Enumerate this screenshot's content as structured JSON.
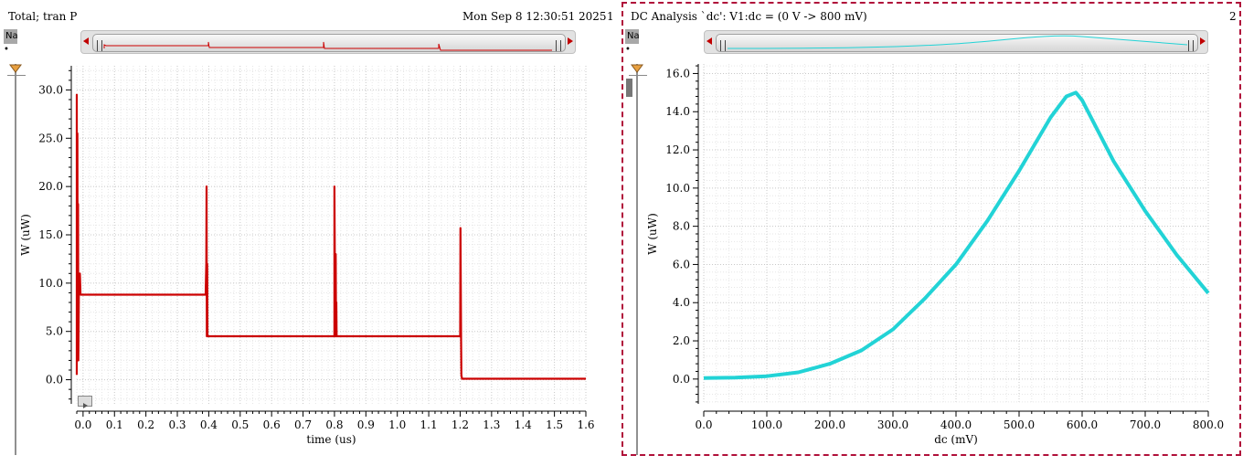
{
  "left_pane": {
    "title": "Total; tran P",
    "date": "Mon Sep 8 12:30:51 2025",
    "index": "1",
    "side_label": "Na"
  },
  "right_pane": {
    "title": "DC Analysis `dc': V1:dc = (0 V -> 800 mV)",
    "index": "2",
    "side_label": "Na"
  },
  "colors": {
    "trace_left": "#cc0000",
    "trace_right": "#22d3d6",
    "selection": "#b0103a"
  },
  "chart_data": [
    {
      "type": "line",
      "title": "Total; tran P",
      "xlabel": "time (us)",
      "ylabel": "W (uW)",
      "xlim": [
        -0.02,
        1.6
      ],
      "ylim": [
        -2.5,
        32.5
      ],
      "xticks": [
        "0.0",
        "0.1",
        "0.2",
        "0.3",
        "0.4",
        "0.5",
        "0.6",
        "0.7",
        "0.8",
        "0.9",
        "1.0",
        "1.1",
        "1.2",
        "1.3",
        "1.4",
        "1.5",
        "1.6"
      ],
      "yticks": [
        "0.0",
        "5.0",
        "10.0",
        "15.0",
        "20.0",
        "25.0",
        "30.0"
      ],
      "grid": true,
      "series": [
        {
          "x": [
            -0.02,
            -0.02,
            -0.019,
            -0.018,
            -0.017,
            -0.016,
            -0.015,
            -0.013,
            -0.012,
            -0.01,
            -0.008,
            -0.005,
            0.39,
            0.392,
            0.393,
            0.394,
            0.395,
            0.396,
            0.8,
            0.8,
            0.801,
            0.803,
            0.804,
            0.805,
            0.806,
            0.807,
            1.2,
            1.201,
            1.203,
            1.204,
            1.206,
            1.6
          ],
          "y": [
            0.5,
            29.5,
            2,
            25.5,
            2,
            18.2,
            2,
            10.5,
            9,
            11,
            8.8,
            8.8,
            8.8,
            12,
            20,
            4.5,
            12,
            4.5,
            4.5,
            20,
            13,
            4.5,
            13,
            4.5,
            8,
            4.5,
            4.5,
            15.7,
            4,
            0.5,
            0.1,
            0.1
          ]
        }
      ]
    },
    {
      "type": "line",
      "title": "DC Analysis `dc': V1:dc = (0 V -> 800 mV)",
      "xlabel": "dc (mV)",
      "ylabel": "W (uW)",
      "xlim": [
        0,
        800
      ],
      "ylim": [
        -1.3,
        16.5
      ],
      "xticks": [
        "0.0",
        "100.0",
        "200.0",
        "300.0",
        "400.0",
        "500.0",
        "600.0",
        "700.0",
        "800.0"
      ],
      "yticks": [
        "0.0",
        "2.0",
        "4.0",
        "6.0",
        "8.0",
        "10.0",
        "12.0",
        "14.0",
        "16.0"
      ],
      "grid": true,
      "series": [
        {
          "x": [
            0,
            50,
            100,
            150,
            200,
            250,
            300,
            350,
            400,
            450,
            500,
            550,
            575,
            590,
            600,
            650,
            700,
            750,
            800
          ],
          "y": [
            0.05,
            0.08,
            0.15,
            0.35,
            0.8,
            1.5,
            2.6,
            4.2,
            6.0,
            8.3,
            10.9,
            13.7,
            14.8,
            15.0,
            14.6,
            11.4,
            8.8,
            6.5,
            4.5
          ]
        }
      ]
    }
  ]
}
